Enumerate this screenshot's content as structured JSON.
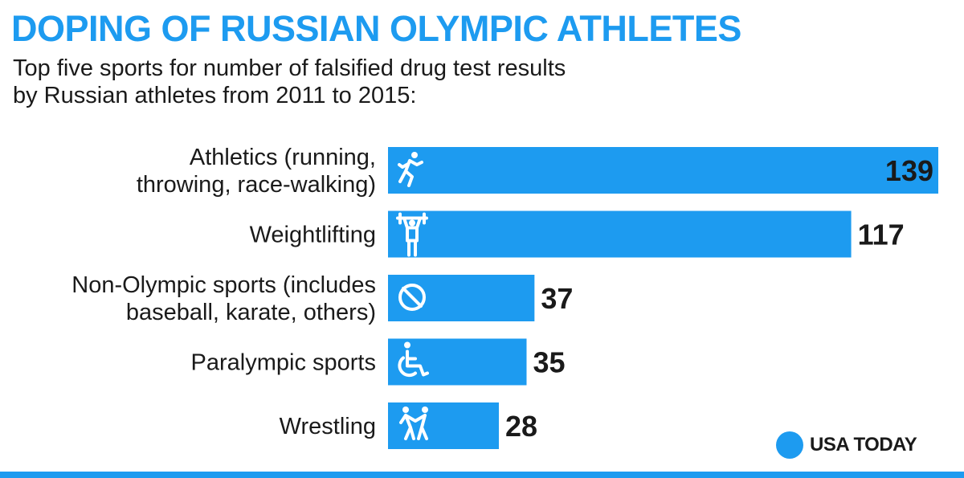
{
  "header": {
    "title": "DOPING OF RUSSIAN OLYMPIC ATHLETES",
    "subtitle_lines": [
      "Top five sports for number of falsified drug test results",
      "by Russian athletes from 2011 to 2015:"
    ]
  },
  "chart_data": {
    "type": "bar",
    "orientation": "horizontal",
    "categories": [
      [
        "Athletics (running,",
        "throwing, race-walking)"
      ],
      [
        "Weightlifting"
      ],
      [
        "Non-Olympic sports (includes",
        "baseball, karate, others)"
      ],
      [
        "Paralympic sports"
      ],
      [
        "Wrestling"
      ]
    ],
    "values": [
      139,
      117,
      37,
      35,
      28
    ],
    "icons": [
      "runner-icon",
      "weightlifter-icon",
      "prohibited-icon",
      "wheelchair-icon",
      "wrestlers-icon"
    ],
    "xlim": [
      0,
      139
    ],
    "grid": false,
    "bar_color": "#1d9bf0"
  },
  "brand": {
    "logo_text": "USA TODAY",
    "accent_color": "#1d9bf0"
  }
}
